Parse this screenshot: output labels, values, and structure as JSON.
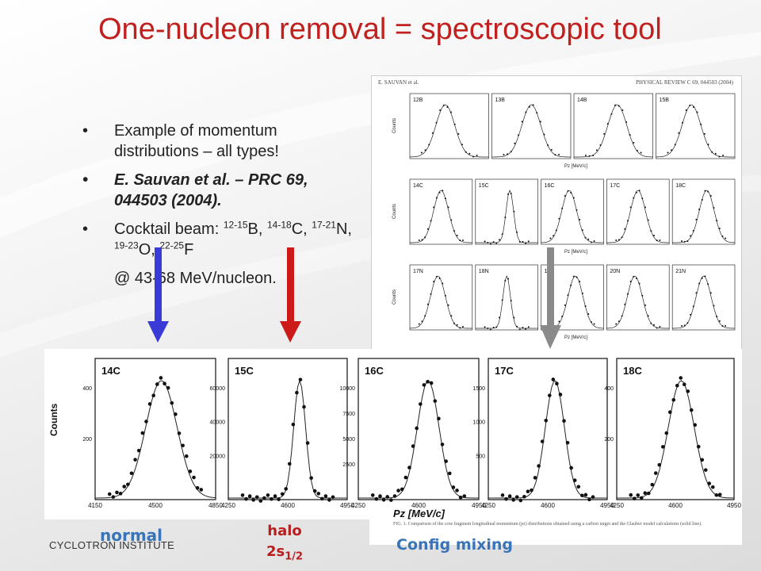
{
  "slide": {
    "title": "One-nucleon removal = spectroscopic tool",
    "bullets": {
      "b1": "Example of momentum distributions – all types!",
      "b2": "E. Sauvan et al. – PRC 69, 044503 (2004).",
      "b3_text1": "Cocktail beam: ",
      "b3_sup1": "12-15",
      "b3_text2": "B, ",
      "b3_sup2": "14-18",
      "b3_text3": "C, ",
      "b3_sup3": "17-21",
      "b3_text4": "N, ",
      "b3_sup4": "19-23",
      "b3_text5": "O, ",
      "b3_sup5": "22-25",
      "b3_text6": "F",
      "b3_line2": "@ 43-68 MeV/nucleon."
    },
    "footer": "CYCLOTRON INSTITUTE",
    "labels": {
      "normal": "normal",
      "halo_line1": "halo",
      "halo_line2": "2s",
      "halo_sub": "1/2",
      "config_mixing": "Config mixing"
    }
  },
  "journal": {
    "header_left": "E. SAUVAN et al.",
    "header_right": "PHYSICAL REVIEW C 69, 044503 (2004)",
    "panel_labels": [
      "12B",
      "13B",
      "14B",
      "15B",
      "14C",
      "15C",
      "16C",
      "17C",
      "18C",
      "17N",
      "18N",
      "19N",
      "20N",
      "21N"
    ],
    "axis_label": "Pz [MeV/c]",
    "y_label": "Counts"
  },
  "big_panels": {
    "y_label": "Counts",
    "x_label": "Pz [MeV/c]",
    "panels": [
      {
        "label": "14C",
        "yticks": [
          "400",
          "200"
        ],
        "xticks": [
          "4150",
          "4500",
          "4850"
        ]
      },
      {
        "label": "15C",
        "yticks": [
          "60000",
          "40000",
          "20000"
        ],
        "xticks": [
          "4250",
          "4600",
          "4950"
        ]
      },
      {
        "label": "16C",
        "yticks": [
          "10000",
          "7500",
          "5000",
          "2500"
        ],
        "xticks": [
          "4250",
          "4600",
          "4950"
        ]
      },
      {
        "label": "17C",
        "yticks": [
          "1500",
          "1000",
          "500"
        ],
        "xticks": [
          "4250",
          "4600",
          "4950"
        ]
      },
      {
        "label": "18C",
        "yticks": [
          "400",
          "200"
        ],
        "xticks": [
          "4250",
          "4600",
          "4950"
        ]
      }
    ]
  },
  "caption": "FIG. 1. Comparison of the core fragment longitudinal momentum (pz) distributions obtained using a carbon target and the Glauber model calculations (solid line).",
  "colors": {
    "title": "#c0201e",
    "arrow_blue": "#3a3ad6",
    "arrow_red": "#cc1a1a",
    "arrow_gray": "#8a8a8a",
    "label_blue": "#3a74b8",
    "label_red": "#b81e1e"
  }
}
